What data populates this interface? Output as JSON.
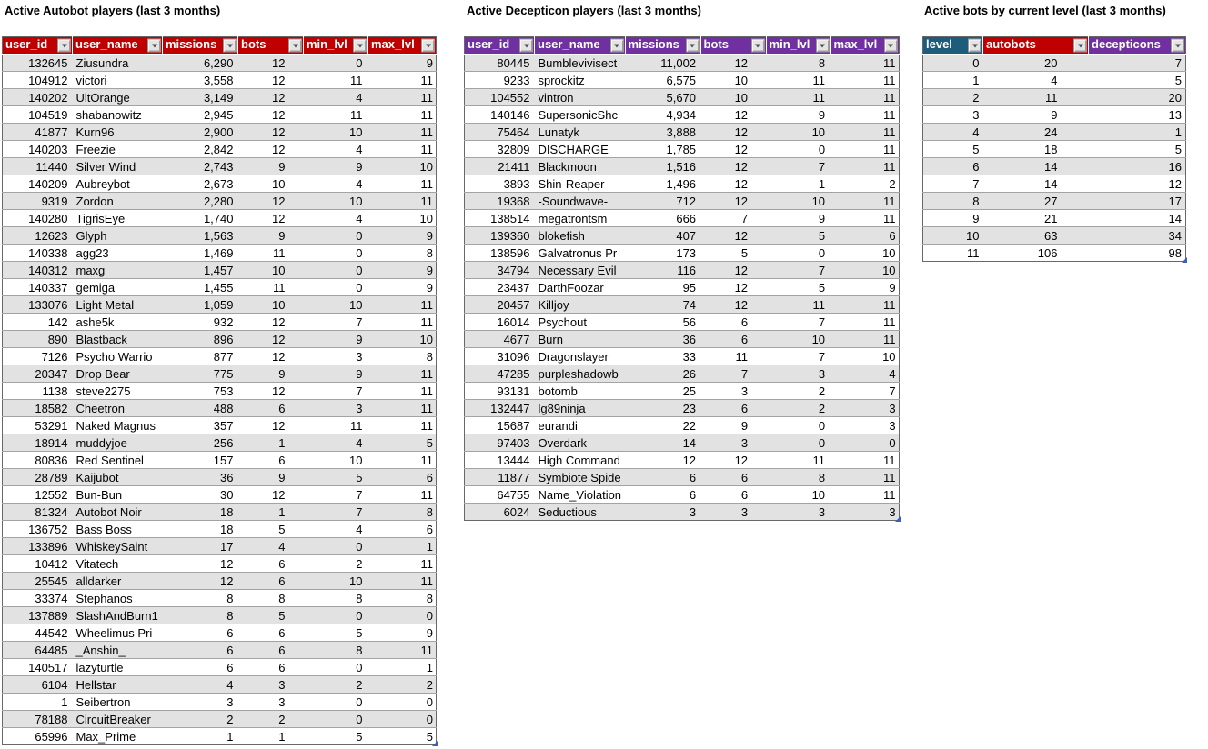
{
  "colors": {
    "autobot_header_red": "#C00000",
    "decepticon_header_purple": "#7030A0",
    "level_header_teal": "#1E5C7B",
    "band_stripe_gray": "#E2E2E2",
    "grid_line_gray": "#A3A3A3",
    "resize_handle_blue": "#3B5FC0"
  },
  "icons": {
    "filter_dropdown": "chevron-down",
    "filter_arrow_glyph": "▼",
    "resize_handle": "corner-triangle"
  },
  "tables": [
    {
      "name": "autobot-players",
      "title": "Active Autobot players (last 3 months)",
      "columns": [
        {
          "label": "user_id",
          "color": "#C00000"
        },
        {
          "label": "user_name",
          "color": "#C00000"
        },
        {
          "label": "missions",
          "color": "#C00000"
        },
        {
          "label": "bots",
          "color": "#C00000"
        },
        {
          "label": "min_lvl",
          "color": "#C00000"
        },
        {
          "label": "max_lvl",
          "color": "#C00000"
        }
      ],
      "rows": [
        [
          "132645",
          "Ziusundra",
          "6,290",
          "12",
          "0",
          "9"
        ],
        [
          "104912",
          "victori",
          "3,558",
          "12",
          "11",
          "11"
        ],
        [
          "140202",
          "UltOrange",
          "3,149",
          "12",
          "4",
          "11"
        ],
        [
          "104519",
          "shabanowitz",
          "2,945",
          "12",
          "11",
          "11"
        ],
        [
          "41877",
          "Kurn96",
          "2,900",
          "12",
          "10",
          "11"
        ],
        [
          "140203",
          "Freezie",
          "2,842",
          "12",
          "4",
          "11"
        ],
        [
          "11440",
          "Silver Wind",
          "2,743",
          "9",
          "9",
          "10"
        ],
        [
          "140209",
          "Aubreybot",
          "2,673",
          "10",
          "4",
          "11"
        ],
        [
          "9319",
          "Zordon",
          "2,280",
          "12",
          "10",
          "11"
        ],
        [
          "140280",
          "TigrisEye",
          "1,740",
          "12",
          "4",
          "10"
        ],
        [
          "12623",
          "Glyph",
          "1,563",
          "9",
          "0",
          "9"
        ],
        [
          "140338",
          "agg23",
          "1,469",
          "11",
          "0",
          "8"
        ],
        [
          "140312",
          "maxg",
          "1,457",
          "10",
          "0",
          "9"
        ],
        [
          "140337",
          "gemiga",
          "1,455",
          "11",
          "0",
          "9"
        ],
        [
          "133076",
          "Light Metal",
          "1,059",
          "10",
          "10",
          "11"
        ],
        [
          "142",
          "ashe5k",
          "932",
          "12",
          "7",
          "11"
        ],
        [
          "890",
          "Blastback",
          "896",
          "12",
          "9",
          "10"
        ],
        [
          "7126",
          "Psycho Warrio",
          "877",
          "12",
          "3",
          "8"
        ],
        [
          "20347",
          "Drop Bear",
          "775",
          "9",
          "9",
          "11"
        ],
        [
          "1138",
          "steve2275",
          "753",
          "12",
          "7",
          "11"
        ],
        [
          "18582",
          "Cheetron",
          "488",
          "6",
          "3",
          "11"
        ],
        [
          "53291",
          "Naked Magnus",
          "357",
          "12",
          "11",
          "11"
        ],
        [
          "18914",
          "muddyjoe",
          "256",
          "1",
          "4",
          "5"
        ],
        [
          "80836",
          "Red Sentinel",
          "157",
          "6",
          "10",
          "11"
        ],
        [
          "28789",
          "Kaijubot",
          "36",
          "9",
          "5",
          "6"
        ],
        [
          "12552",
          "Bun-Bun",
          "30",
          "12",
          "7",
          "11"
        ],
        [
          "81324",
          "Autobot Noir",
          "18",
          "1",
          "7",
          "8"
        ],
        [
          "136752",
          "Bass Boss",
          "18",
          "5",
          "4",
          "6"
        ],
        [
          "133896",
          "WhiskeySaint",
          "17",
          "4",
          "0",
          "1"
        ],
        [
          "10412",
          "Vitatech",
          "12",
          "6",
          "2",
          "11"
        ],
        [
          "25545",
          "alldarker",
          "12",
          "6",
          "10",
          "11"
        ],
        [
          "33374",
          "Stephanos",
          "8",
          "8",
          "8",
          "8"
        ],
        [
          "137889",
          "SlashAndBurn1",
          "8",
          "5",
          "0",
          "0"
        ],
        [
          "44542",
          "Wheelimus Pri",
          "6",
          "6",
          "5",
          "9"
        ],
        [
          "64485",
          "_Anshin_",
          "6",
          "6",
          "8",
          "11"
        ],
        [
          "140517",
          "lazyturtle",
          "6",
          "6",
          "0",
          "1"
        ],
        [
          "6104",
          "Hellstar",
          "4",
          "3",
          "2",
          "2"
        ],
        [
          "1",
          "Seibertron",
          "3",
          "3",
          "0",
          "0"
        ],
        [
          "78188",
          "CircuitBreaker",
          "2",
          "2",
          "0",
          "0"
        ],
        [
          "65996",
          "Max_Prime",
          "1",
          "1",
          "5",
          "5"
        ]
      ]
    },
    {
      "name": "decepticon-players",
      "title": "Active Decepticon players (last 3 months)",
      "columns": [
        {
          "label": "user_id",
          "color": "#7030A0"
        },
        {
          "label": "user_name",
          "color": "#7030A0"
        },
        {
          "label": "missions",
          "color": "#7030A0"
        },
        {
          "label": "bots",
          "color": "#7030A0"
        },
        {
          "label": "min_lvl",
          "color": "#7030A0"
        },
        {
          "label": "max_lvl",
          "color": "#7030A0"
        }
      ],
      "rows": [
        [
          "80445",
          "Bumblevivisect",
          "11,002",
          "12",
          "8",
          "11"
        ],
        [
          "9233",
          "sprockitz",
          "6,575",
          "10",
          "11",
          "11"
        ],
        [
          "104552",
          "vintron",
          "5,670",
          "10",
          "11",
          "11"
        ],
        [
          "140146",
          "SupersonicShc",
          "4,934",
          "12",
          "9",
          "11"
        ],
        [
          "75464",
          "Lunatyk",
          "3,888",
          "12",
          "10",
          "11"
        ],
        [
          "32809",
          "DISCHARGE",
          "1,785",
          "12",
          "0",
          "11"
        ],
        [
          "21411",
          "Blackmoon",
          "1,516",
          "12",
          "7",
          "11"
        ],
        [
          "3893",
          "Shin-Reaper",
          "1,496",
          "12",
          "1",
          "2"
        ],
        [
          "19368",
          "-Soundwave-",
          "712",
          "12",
          "10",
          "11"
        ],
        [
          "138514",
          "megatrontsm",
          "666",
          "7",
          "9",
          "11"
        ],
        [
          "139360",
          "blokefish",
          "407",
          "12",
          "5",
          "6"
        ],
        [
          "138596",
          "Galvatronus Pr",
          "173",
          "5",
          "0",
          "10"
        ],
        [
          "34794",
          "Necessary Evil",
          "116",
          "12",
          "7",
          "10"
        ],
        [
          "23437",
          "DarthFoozar",
          "95",
          "12",
          "5",
          "9"
        ],
        [
          "20457",
          "Killjoy",
          "74",
          "12",
          "11",
          "11"
        ],
        [
          "16014",
          "Psychout",
          "56",
          "6",
          "7",
          "11"
        ],
        [
          "4677",
          "Burn",
          "36",
          "6",
          "10",
          "11"
        ],
        [
          "31096",
          "Dragonslayer",
          "33",
          "11",
          "7",
          "10"
        ],
        [
          "47285",
          "purpleshadowb",
          "26",
          "7",
          "3",
          "4"
        ],
        [
          "93131",
          "botomb",
          "25",
          "3",
          "2",
          "7"
        ],
        [
          "132447",
          "lg89ninja",
          "23",
          "6",
          "2",
          "3"
        ],
        [
          "15687",
          "eurandi",
          "22",
          "9",
          "0",
          "3"
        ],
        [
          "97403",
          "Overdark",
          "14",
          "3",
          "0",
          "0"
        ],
        [
          "13444",
          "High Command",
          "12",
          "12",
          "11",
          "11"
        ],
        [
          "11877",
          "Symbiote Spide",
          "6",
          "6",
          "8",
          "11"
        ],
        [
          "64755",
          "Name_Violation",
          "6",
          "6",
          "10",
          "11"
        ],
        [
          "6024",
          "Seductious",
          "3",
          "3",
          "3",
          "3"
        ]
      ]
    },
    {
      "name": "bots-by-level",
      "title": "Active bots by current level (last 3 months)",
      "columns": [
        {
          "label": "level",
          "color": "#1E5C7B"
        },
        {
          "label": "autobots",
          "color": "#C00000"
        },
        {
          "label": "decepticons",
          "color": "#7030A0"
        }
      ],
      "rows": [
        [
          "0",
          "20",
          "7"
        ],
        [
          "1",
          "4",
          "5"
        ],
        [
          "2",
          "11",
          "20"
        ],
        [
          "3",
          "9",
          "13"
        ],
        [
          "4",
          "24",
          "1"
        ],
        [
          "5",
          "18",
          "5"
        ],
        [
          "6",
          "14",
          "16"
        ],
        [
          "7",
          "14",
          "12"
        ],
        [
          "8",
          "27",
          "17"
        ],
        [
          "9",
          "21",
          "14"
        ],
        [
          "10",
          "63",
          "34"
        ],
        [
          "11",
          "106",
          "98"
        ]
      ]
    }
  ]
}
